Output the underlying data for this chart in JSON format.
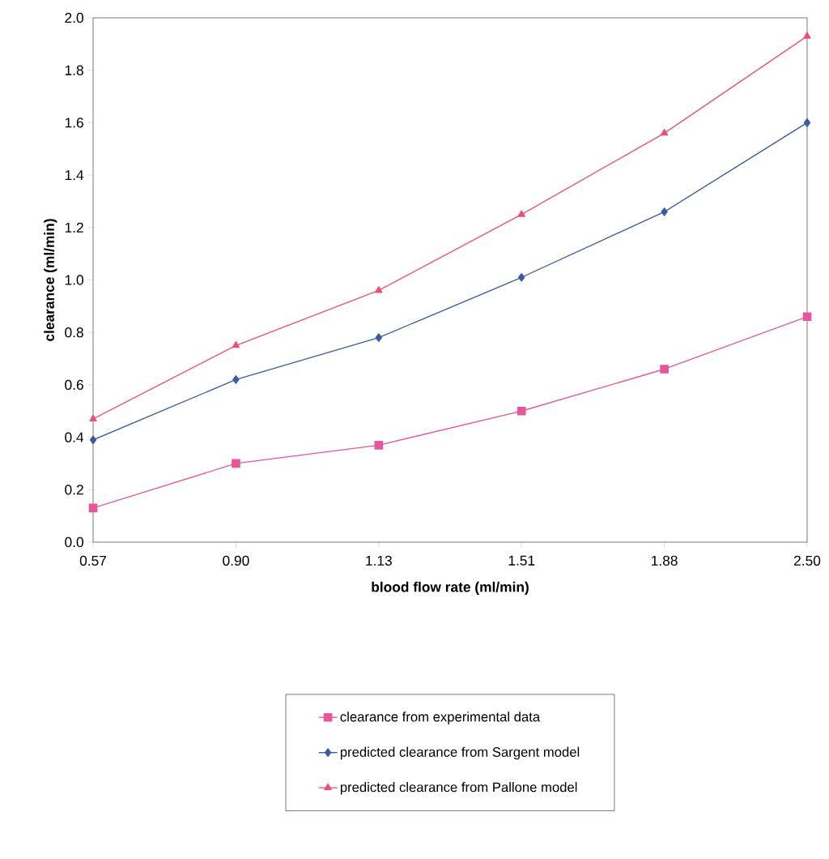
{
  "chart_data": {
    "type": "line",
    "xlabel": "blood flow rate (ml/min)",
    "ylabel": "clearance (ml/min)",
    "categories": [
      "0.57",
      "0.90",
      "1.13",
      "1.51",
      "1.88",
      "2.50"
    ],
    "series": [
      {
        "name": "clearance from experimental data",
        "color": "#e8559a",
        "marker": "square",
        "values": [
          0.13,
          0.3,
          0.37,
          0.5,
          0.66,
          0.86
        ]
      },
      {
        "name": "predicted clearance from Sargent model",
        "color": "#3b5ba5",
        "marker": "diamond",
        "values": [
          0.39,
          0.62,
          0.78,
          1.01,
          1.26,
          1.6
        ]
      },
      {
        "name": "predicted clearance from Pallone model",
        "color": "#f0506e",
        "marker": "triangle",
        "values": [
          0.47,
          0.75,
          0.96,
          1.25,
          1.56,
          1.93
        ]
      }
    ],
    "ylim": [
      0,
      2.0
    ],
    "yticks": [
      {
        "value": 0,
        "label": "0.0"
      },
      0.2,
      0.4,
      0.6,
      0.8,
      {
        "value": 1.0,
        "label": "1.0"
      },
      1.2,
      1.4,
      1.6,
      1.8,
      {
        "value": 2.0,
        "label": "2.0"
      }
    ],
    "grid": false,
    "legend": "bottom",
    "line_style": "solid"
  }
}
